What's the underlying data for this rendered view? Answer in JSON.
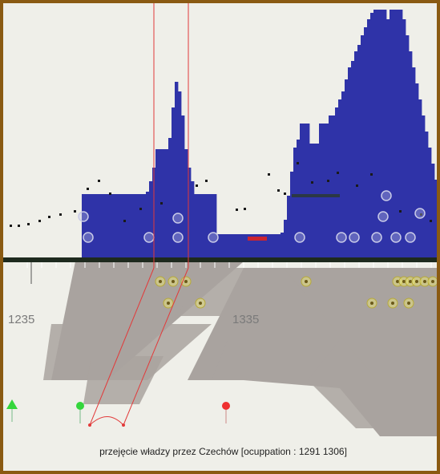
{
  "colors": {
    "frame": "#8a5a12",
    "background": "#efefe9",
    "histogram": "#2f33a8",
    "ribbon": "#a9a39f",
    "event_line": "#e23a3a",
    "event_marker_green": "#34d63c",
    "event_marker_red": "#ef3030",
    "timeline_bar": "#1e2a1e"
  },
  "timeline": {
    "year_labels": [
      "1235",
      "1335"
    ]
  },
  "event": {
    "caption": "przejęcie władzy przez Czechów [ocuppation : 1291 1306]"
  },
  "icons": {
    "start_marker": "green-triangle-icon",
    "event_markers": [
      "green-pin-icon",
      "red-pin-icon"
    ]
  }
}
